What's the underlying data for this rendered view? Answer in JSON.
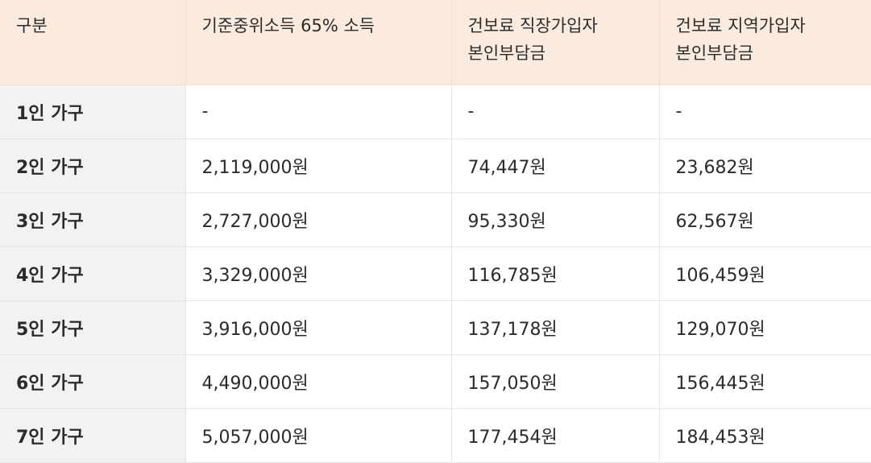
{
  "table": {
    "headers": [
      {
        "lines": [
          "구분"
        ]
      },
      {
        "lines": [
          "기준중위소득 65% 소득"
        ]
      },
      {
        "lines": [
          "건보료 직장가입자",
          "본인부담금"
        ]
      },
      {
        "lines": [
          "건보료 지역가입자",
          "본인부담금"
        ]
      }
    ],
    "rows": [
      [
        "1인 가구",
        "-",
        "-",
        "-"
      ],
      [
        "2인 가구",
        "2,119,000원",
        "74,447원",
        "23,682원"
      ],
      [
        "3인 가구",
        "2,727,000원",
        "95,330원",
        "62,567원"
      ],
      [
        "4인 가구",
        "3,329,000원",
        "116,785원",
        "106,459원"
      ],
      [
        "5인 가구",
        "3,916,000원",
        "137,178원",
        "129,070원"
      ],
      [
        "6인 가구",
        "4,490,000원",
        "157,050원",
        "156,445원"
      ],
      [
        "7인 가구",
        "5,057,000원",
        "177,454원",
        "184,453원"
      ]
    ],
    "colors": {
      "header_bg": "#fbebdf",
      "row_header_bg": "#f4f2f1",
      "border": "#e6e6e6"
    }
  }
}
